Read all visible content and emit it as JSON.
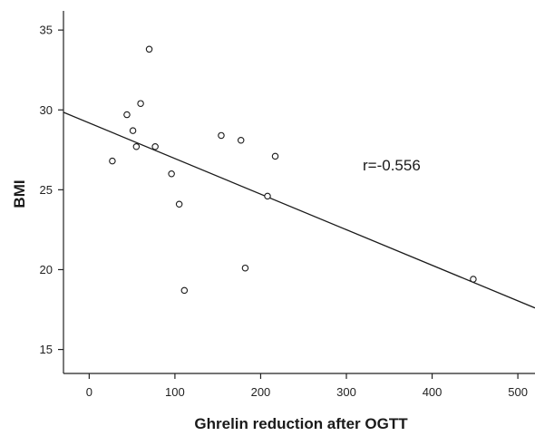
{
  "chart_data": {
    "type": "scatter",
    "xlabel": "Ghrelin reduction after OGTT",
    "ylabel": "BMI",
    "xlim": [
      -30,
      520
    ],
    "ylim": [
      13.5,
      36.2
    ],
    "xticks": [
      0,
      100,
      200,
      300,
      400,
      500
    ],
    "yticks": [
      15,
      20,
      25,
      30,
      35
    ],
    "grid": false,
    "points": [
      {
        "x": 27,
        "y": 26.8
      },
      {
        "x": 44,
        "y": 29.7
      },
      {
        "x": 51,
        "y": 28.7
      },
      {
        "x": 55,
        "y": 27.7
      },
      {
        "x": 60,
        "y": 30.4
      },
      {
        "x": 70,
        "y": 33.8
      },
      {
        "x": 77,
        "y": 27.7
      },
      {
        "x": 96,
        "y": 26.0
      },
      {
        "x": 105,
        "y": 24.1
      },
      {
        "x": 111,
        "y": 18.7
      },
      {
        "x": 154,
        "y": 28.4
      },
      {
        "x": 177,
        "y": 28.1
      },
      {
        "x": 182,
        "y": 20.1
      },
      {
        "x": 208,
        "y": 24.6
      },
      {
        "x": 217,
        "y": 27.1
      },
      {
        "x": 448,
        "y": 19.4
      }
    ],
    "regression_line": {
      "x": [
        -30,
        520
      ],
      "y": [
        29.85,
        17.6
      ]
    },
    "annotation": "r=-0.556"
  }
}
